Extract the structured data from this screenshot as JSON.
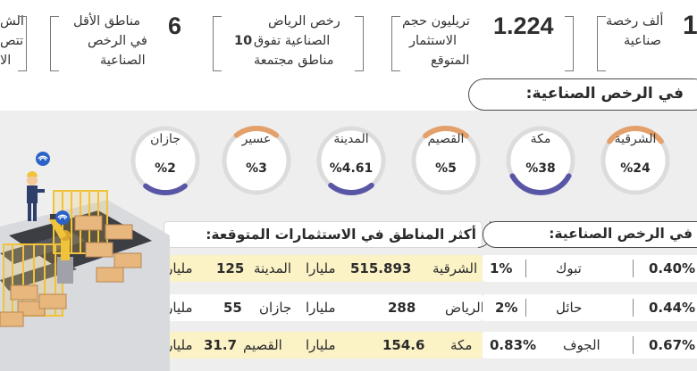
{
  "top_stats": {
    "s1": {
      "number": "1",
      "text": [
        "ألف رخصة",
        "صناعية"
      ]
    },
    "s2": {
      "number": "1.224",
      "text": [
        "تريليون حجم",
        "الاستثمار",
        "المتوقع"
      ]
    },
    "s3": {
      "text1": "رخص الرياض",
      "text2": "الصناعية تفوق",
      "bold": "10",
      "text3": "مناطق مجتمعة"
    },
    "s4": {
      "number": "6",
      "text": [
        "مناطق الأقل",
        "في الرخص",
        "الصناعية"
      ]
    },
    "s5": {
      "text": [
        "الش",
        "تتص",
        "الا"
      ]
    }
  },
  "section_title": "في الرخص الصناعية:",
  "rings": [
    {
      "name": "الشرقية",
      "value": "%24",
      "color": "#e3a06b",
      "fraction": 0.24
    },
    {
      "name": "مكة",
      "value": "%38",
      "color": "#5a56a6",
      "fraction": 0.38
    },
    {
      "name": "القصيم",
      "value": "%5",
      "color": "#e3a06b",
      "fraction": 0.05
    },
    {
      "name": "المدينة",
      "value": "%4.61",
      "color": "#5a56a6",
      "fraction": 0.0461
    },
    {
      "name": "عسير",
      "value": "%3",
      "color": "#e3a06b",
      "fraction": 0.03
    },
    {
      "name": "جازان",
      "value": "%2",
      "color": "#5a56a6",
      "fraction": 0.02
    }
  ],
  "left_table": {
    "title": "أكثر المناطق في الاستثمارات المتوقعة:",
    "rows": [
      {
        "r1": "الشرقية",
        "v1": "515.893",
        "u1": "مليارا",
        "r2": "المدينة",
        "v2": "125",
        "u2": "مليارا",
        "bg": "#fbf2c6"
      },
      {
        "r1": "الرياض",
        "v1": "288",
        "u1": "مليارا",
        "r2": "جازان",
        "v2": "55",
        "u2": "مليارا",
        "bg": "#ffffff"
      },
      {
        "r1": "مكة",
        "v1": "154.6",
        "u1": "مليارا",
        "r2": "القصيم",
        "v2": "31.7",
        "u2": "مليارا",
        "bg": "#fbf2c6"
      }
    ]
  },
  "right_table": {
    "title": "في الرخص الصناعية:",
    "rows": [
      {
        "region": "تبوك",
        "pct": "1%",
        "far": "0.40%"
      },
      {
        "region": "حائل",
        "pct": "2%",
        "far": "0.44%"
      },
      {
        "region": "الجوف",
        "pct": "0.83%",
        "far": "0.67%"
      }
    ]
  }
}
